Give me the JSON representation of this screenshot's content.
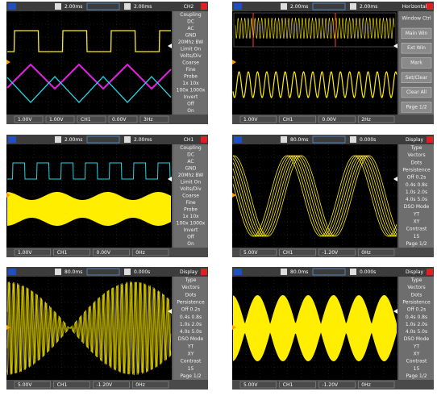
{
  "panels": [
    {
      "timebase": "2.00ms",
      "delay": "2.00ms",
      "title": "CH2",
      "menu": [
        "Coupling",
        "DC",
        "AC",
        "GND",
        "20Mhz BW",
        "Limit On",
        "Volts/Div",
        "Coarse",
        "Fine",
        "Probe",
        "1x 10x",
        "100x 1000x",
        "Invert",
        "Off",
        "On"
      ],
      "bottom": [
        "1.00V",
        "1.00V",
        "CH1",
        "0.00V",
        "3Hz"
      ]
    },
    {
      "timebase": "2.00ms",
      "delay": "2.00ms",
      "title": "Horizontal",
      "menu": [
        "Window Ctrl",
        "Main Win",
        "Ext Win",
        "Mark",
        "Set/Clear",
        "Clear All",
        "Page 1/2"
      ],
      "bottom": [
        "1.00V",
        "CH1",
        "0.00V",
        "2Hz"
      ]
    },
    {
      "timebase": "2.00ms",
      "delay": "2.00ms",
      "title": "CH1",
      "menu": [
        "Coupling",
        "DC",
        "AC",
        "GND",
        "20Mhz BW",
        "Limit On",
        "Volts/Div",
        "Coarse",
        "Fine",
        "Probe",
        "1x 10x",
        "100x 1000x",
        "Invert",
        "Off",
        "On"
      ],
      "bottom": [
        "1.00V",
        "CH1",
        "0.00V",
        "0Hz"
      ]
    },
    {
      "timebase": "80.0ms",
      "delay": "0.000s",
      "title": "Display",
      "menu": [
        "Type",
        "Vectors",
        "Dots",
        "Persistence",
        "Off 0.2s",
        "0.4s 0.8s",
        "1.0s 2.0s",
        "4.0s 5.0s",
        "DSO Mode",
        "YT",
        "XY",
        "Contrast",
        "15",
        "Page 1/2"
      ],
      "bottom": [
        "5.00V",
        "CH1",
        "-1.20V",
        "0Hz"
      ]
    },
    {
      "timebase": "80.0ms",
      "delay": "0.000s",
      "title": "Display",
      "menu": [
        "Type",
        "Vectors",
        "Dots",
        "Persistence",
        "Off 0.2s",
        "0.4s 0.8s",
        "1.0s 2.0s",
        "4.0s 5.0s",
        "DSO Mode",
        "YT",
        "XY",
        "Contrast",
        "15",
        "Page 1/2"
      ],
      "bottom": [
        "5.00V",
        "CH1",
        "-1.20V",
        "0Hz"
      ]
    },
    {
      "timebase": "80.0ms",
      "delay": "0.000s",
      "title": "Display",
      "menu": [
        "Type",
        "Vectors",
        "Dots",
        "Persistence",
        "Off 0.2s",
        "0.4s 0.8s",
        "1.0s 2.0s",
        "4.0s 5.0s",
        "DSO Mode",
        "YT",
        "XY",
        "Contrast",
        "15",
        "Page 1/2"
      ],
      "bottom": [
        "5.00V",
        "CH1",
        "-1.20V",
        "0Hz"
      ]
    }
  ]
}
